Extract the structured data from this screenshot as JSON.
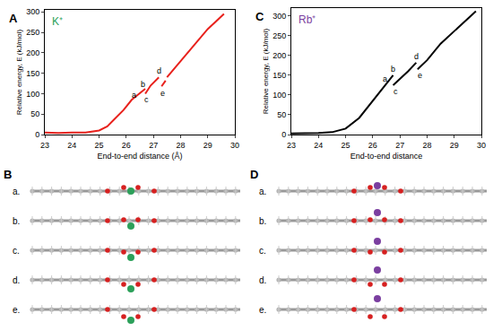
{
  "chart_data": [
    {
      "type": "line",
      "panel": "A",
      "ion": "K⁺",
      "ion_color": "#2ca05a",
      "x_label": "End-to-end distance (Å)",
      "y_label": "Relative energy, E (kJ/mol)",
      "xlim": [
        23,
        30
      ],
      "xticks": [
        23,
        24,
        25,
        26,
        27,
        28,
        29,
        30
      ],
      "ylim": [
        0,
        305
      ],
      "yticks": [
        0,
        50,
        100,
        150,
        200,
        250,
        300
      ],
      "series": [
        {
          "color": "#e8211c",
          "x": [
            23,
            23.5,
            24,
            24.5,
            25,
            25.3,
            25.6,
            25.9,
            26.2,
            26.5,
            26.7,
            26.7,
            26.7,
            26.9,
            27.2,
            27.2,
            27.3,
            27.45,
            27.45,
            27.5,
            28,
            28.5,
            29,
            29.6
          ],
          "values": [
            5,
            4,
            5,
            5,
            10,
            20,
            40,
            60,
            85,
            100,
            112,
            null,
            100,
            120,
            140,
            null,
            118,
            132,
            null,
            140,
            180,
            220,
            258,
            295
          ]
        }
      ],
      "annotations": [
        {
          "text": "a",
          "x": 26.3,
          "y": 97
        },
        {
          "text": "b",
          "x": 26.6,
          "y": 122
        },
        {
          "text": "c",
          "x": 26.75,
          "y": 85
        },
        {
          "text": "d",
          "x": 27.2,
          "y": 155
        },
        {
          "text": "e",
          "x": 27.35,
          "y": 102
        }
      ]
    },
    {
      "type": "line",
      "panel": "C",
      "ion": "Rb⁺",
      "ion_color": "#7b3fa0",
      "x_label": "End-to-end distance",
      "y_label": "Relative energy, E (kJ/mol)",
      "xlim": [
        23,
        30
      ],
      "xticks": [
        23,
        24,
        25,
        26,
        27,
        28,
        29,
        30
      ],
      "ylim": [
        0,
        320
      ],
      "yticks": [
        0,
        50,
        100,
        150,
        200,
        250,
        300
      ],
      "series": [
        {
          "color": "#000000",
          "x": [
            23,
            23.5,
            24,
            24.5,
            25,
            25.5,
            26,
            26.3,
            26.6,
            26.75,
            26.75,
            26.75,
            27,
            27.3,
            27.6,
            27.6,
            27.65,
            28,
            28.5,
            29,
            29.5,
            29.8
          ],
          "values": [
            3,
            3,
            4,
            6,
            15,
            42,
            85,
            110,
            135,
            150,
            null,
            125,
            140,
            160,
            182,
            null,
            165,
            188,
            230,
            262,
            295,
            312
          ]
        }
      ],
      "annotations": [
        {
          "text": "a",
          "x": 26.45,
          "y": 140
        },
        {
          "text": "b",
          "x": 26.75,
          "y": 165
        },
        {
          "text": "c",
          "x": 26.85,
          "y": 110
        },
        {
          "text": "d",
          "x": 27.6,
          "y": 198
        },
        {
          "text": "e",
          "x": 27.75,
          "y": 150
        }
      ]
    }
  ],
  "structures": [
    {
      "panel": "B",
      "ion_color": "#2ca05a",
      "rows": [
        "a.",
        "b.",
        "c.",
        "d.",
        "e."
      ]
    },
    {
      "panel": "D",
      "ion_color": "#7b3fa0",
      "rows": [
        "a.",
        "b.",
        "c.",
        "d.",
        "e."
      ]
    }
  ]
}
